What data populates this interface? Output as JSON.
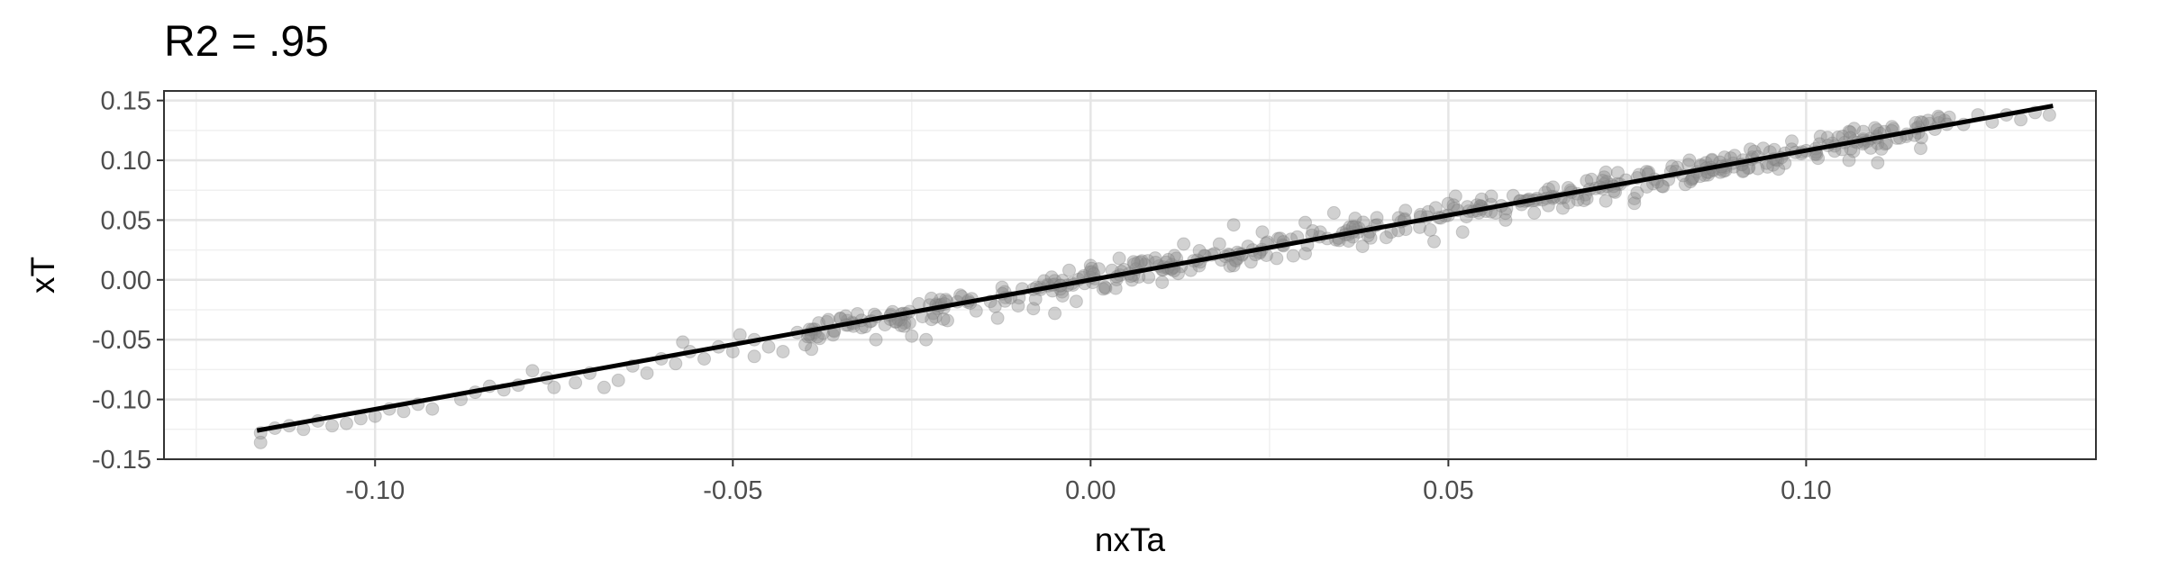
{
  "chart_data": {
    "type": "scatter",
    "title": "R2 = .95",
    "xlabel": "nxTa",
    "ylabel": "xT",
    "xlim": [
      -0.1295,
      0.1405
    ],
    "ylim": [
      -0.15,
      0.158
    ],
    "x_ticks": [
      -0.1,
      -0.05,
      0.0,
      0.05,
      0.1
    ],
    "x_tick_labels": [
      "-0.10",
      "-0.05",
      "0.00",
      "0.05",
      "0.10"
    ],
    "y_ticks": [
      -0.15,
      -0.1,
      -0.05,
      0.0,
      0.05,
      0.1,
      0.15
    ],
    "y_tick_labels": [
      "-0.15",
      "-0.10",
      "-0.05",
      "0.00",
      "0.05",
      "0.10",
      "0.15"
    ],
    "grid": true,
    "legend": "none",
    "point_color": "#8c8c8c",
    "point_opacity": 0.4,
    "fit_line": {
      "color": "#000000",
      "x": [
        -0.1165,
        0.1345
      ],
      "y": [
        -0.126,
        0.1455
      ]
    },
    "series": [
      {
        "points": [
          [
            -0.116,
            -0.128
          ],
          [
            -0.116,
            -0.136
          ],
          [
            -0.114,
            -0.124
          ],
          [
            -0.112,
            -0.122
          ],
          [
            -0.11,
            -0.125
          ],
          [
            -0.108,
            -0.118
          ],
          [
            -0.106,
            -0.122
          ],
          [
            -0.104,
            -0.12
          ],
          [
            -0.102,
            -0.116
          ],
          [
            -0.1,
            -0.114
          ],
          [
            -0.098,
            -0.108
          ],
          [
            -0.096,
            -0.11
          ],
          [
            -0.094,
            -0.104
          ],
          [
            -0.092,
            -0.108
          ],
          [
            -0.088,
            -0.1
          ],
          [
            -0.086,
            -0.094
          ],
          [
            -0.084,
            -0.089
          ],
          [
            -0.082,
            -0.092
          ],
          [
            -0.08,
            -0.088
          ],
          [
            -0.076,
            -0.082
          ],
          [
            -0.075,
            -0.09
          ],
          [
            -0.072,
            -0.086
          ],
          [
            -0.07,
            -0.078
          ],
          [
            -0.068,
            -0.09
          ],
          [
            -0.066,
            -0.084
          ],
          [
            -0.064,
            -0.072
          ],
          [
            -0.062,
            -0.078
          ],
          [
            -0.06,
            -0.066
          ],
          [
            -0.058,
            -0.07
          ],
          [
            -0.056,
            -0.06
          ],
          [
            -0.054,
            -0.066
          ],
          [
            -0.052,
            -0.056
          ],
          [
            -0.05,
            -0.06
          ],
          [
            -0.049,
            -0.046
          ],
          [
            -0.047,
            -0.05
          ],
          [
            -0.045,
            -0.056
          ],
          [
            -0.043,
            -0.06
          ],
          [
            -0.041,
            -0.044
          ],
          [
            -0.039,
            -0.058
          ],
          [
            -0.038,
            -0.036
          ],
          [
            -0.036,
            -0.046
          ],
          [
            -0.034,
            -0.034
          ],
          [
            -0.032,
            -0.04
          ],
          [
            -0.03,
            -0.05
          ],
          [
            -0.028,
            -0.03
          ],
          [
            -0.026,
            -0.036
          ],
          [
            -0.025,
            -0.047
          ],
          [
            -0.024,
            -0.02
          ],
          [
            -0.022,
            -0.028
          ],
          [
            -0.02,
            -0.034
          ],
          [
            -0.018,
            -0.014
          ],
          [
            -0.016,
            -0.026
          ],
          [
            -0.014,
            -0.018
          ],
          [
            -0.013,
            -0.032
          ],
          [
            -0.012,
            -0.01
          ],
          [
            -0.01,
            -0.015
          ],
          [
            -0.008,
            -0.024
          ],
          [
            -0.006,
            -0.004
          ],
          [
            -0.005,
            -0.028
          ],
          [
            -0.004,
            -0.01
          ],
          [
            -0.003,
            0.008
          ],
          [
            -0.002,
            -0.018
          ],
          [
            0.0,
            0.002
          ],
          [
            0.0,
            0.012
          ],
          [
            0.002,
            -0.006
          ],
          [
            0.003,
            0.008
          ],
          [
            0.004,
            0.018
          ],
          [
            0.006,
            0.004
          ],
          [
            0.008,
            0.016
          ],
          [
            0.01,
            -0.002
          ],
          [
            0.012,
            0.018
          ],
          [
            0.013,
            0.03
          ],
          [
            0.014,
            0.008
          ],
          [
            0.016,
            0.02
          ],
          [
            0.018,
            0.03
          ],
          [
            0.02,
            0.012
          ],
          [
            0.022,
            0.028
          ],
          [
            0.024,
            0.04
          ],
          [
            0.026,
            0.018
          ],
          [
            0.028,
            0.034
          ],
          [
            0.03,
            0.048
          ],
          [
            0.03,
            0.022
          ],
          [
            0.032,
            0.036
          ],
          [
            0.034,
            0.056
          ],
          [
            0.036,
            0.038
          ],
          [
            0.038,
            0.028
          ],
          [
            0.04,
            0.052
          ],
          [
            0.042,
            0.04
          ],
          [
            0.044,
            0.058
          ],
          [
            0.046,
            0.044
          ],
          [
            0.048,
            0.032
          ],
          [
            0.05,
            0.054
          ],
          [
            0.051,
            0.07
          ],
          [
            0.052,
            0.04
          ],
          [
            0.054,
            0.058
          ],
          [
            0.056,
            0.07
          ],
          [
            0.058,
            0.05
          ],
          [
            0.06,
            0.066
          ],
          [
            0.062,
            0.056
          ],
          [
            0.064,
            0.076
          ],
          [
            0.066,
            0.06
          ],
          [
            0.068,
            0.072
          ],
          [
            0.07,
            0.084
          ],
          [
            0.072,
            0.066
          ],
          [
            0.074,
            0.08
          ],
          [
            0.076,
            0.068
          ],
          [
            0.078,
            0.09
          ],
          [
            0.08,
            0.078
          ],
          [
            0.082,
            0.094
          ],
          [
            0.084,
            0.084
          ],
          [
            0.086,
            0.098
          ],
          [
            0.088,
            0.09
          ],
          [
            0.09,
            0.104
          ],
          [
            0.092,
            0.094
          ],
          [
            0.094,
            0.11
          ],
          [
            0.096,
            0.1
          ],
          [
            0.098,
            0.116
          ],
          [
            0.1,
            0.108
          ],
          [
            0.102,
            0.12
          ],
          [
            0.104,
            0.112
          ],
          [
            0.106,
            0.1
          ],
          [
            0.108,
            0.124
          ],
          [
            0.11,
            0.114
          ],
          [
            0.112,
            0.128
          ],
          [
            0.114,
            0.12
          ],
          [
            0.116,
            0.132
          ],
          [
            0.118,
            0.126
          ],
          [
            0.12,
            0.136
          ],
          [
            0.122,
            0.13
          ],
          [
            0.124,
            0.138
          ],
          [
            0.126,
            0.132
          ],
          [
            0.128,
            0.138
          ],
          [
            0.13,
            0.134
          ],
          [
            0.132,
            0.14
          ],
          [
            0.134,
            0.138
          ],
          [
            0.116,
            0.11
          ],
          [
            0.11,
            0.098
          ],
          [
            0.106,
            0.124
          ],
          [
            0.076,
            0.064
          ],
          [
            0.072,
            0.09
          ],
          [
            -0.078,
            -0.076
          ],
          [
            -0.057,
            -0.052
          ],
          [
            -0.047,
            -0.064
          ],
          [
            -0.023,
            -0.05
          ],
          [
            0.02,
            0.046
          ]
        ],
        "band": {
          "count": 420,
          "x_range": [
            -0.04,
            0.12
          ],
          "spread": 0.012
        }
      }
    ]
  }
}
